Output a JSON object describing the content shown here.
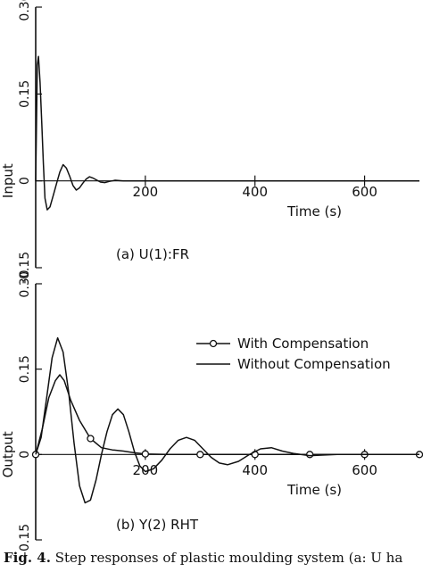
{
  "chart_data": [
    {
      "type": "line",
      "panel_label": "(a)  U(1):FR",
      "ylabel": "Input",
      "xlabel": "Time (s)",
      "xlim": [
        0,
        700
      ],
      "ylim": [
        -0.15,
        0.3
      ],
      "yticks": [
        "0.30",
        "0.15",
        "0",
        "-0.15"
      ],
      "xticks": [
        "200",
        "400",
        "600"
      ],
      "grid": false,
      "series": [
        {
          "x": [
            0,
            3,
            5,
            8,
            11,
            14,
            17,
            21,
            26,
            32,
            38,
            44,
            50,
            56,
            62,
            68,
            74,
            80,
            86,
            92,
            98,
            104,
            110,
            118,
            126,
            134,
            145,
            160,
            200,
            300,
            400,
            500,
            600,
            700
          ],
          "y": [
            0,
            0.2,
            0.215,
            0.17,
            0.1,
            0.03,
            -0.03,
            -0.05,
            -0.045,
            -0.025,
            -0.005,
            0.015,
            0.028,
            0.022,
            0.008,
            -0.008,
            -0.016,
            -0.012,
            -0.004,
            0.003,
            0.007,
            0.005,
            0.002,
            -0.002,
            -0.003,
            -0.001,
            0.001,
            0,
            0,
            0,
            0,
            0,
            0,
            0
          ]
        }
      ]
    },
    {
      "type": "line",
      "panel_label": "(b)  Y(2) RHT",
      "ylabel": "Output",
      "xlabel": "Time (s)",
      "xlim": [
        0,
        700
      ],
      "ylim": [
        -0.15,
        0.3
      ],
      "yticks": [
        "0.30",
        "0.15",
        "0",
        "-0.15"
      ],
      "xticks": [
        "200",
        "400",
        "600"
      ],
      "grid": false,
      "legend": "upper-right",
      "series": [
        {
          "name": "With Compensation",
          "marker": "circle",
          "x": [
            0,
            12,
            24,
            36,
            44,
            52,
            64,
            80,
            100,
            120,
            140,
            160,
            180,
            200,
            240,
            280,
            320,
            360,
            400,
            500,
            600,
            700
          ],
          "y": [
            0,
            0.045,
            0.1,
            0.13,
            0.14,
            0.13,
            0.095,
            0.06,
            0.028,
            0.012,
            0.008,
            0.006,
            0.003,
            0.001,
            0,
            0,
            0,
            0,
            0,
            0,
            0,
            0
          ],
          "marker_x": [
            0,
            100,
            200,
            300,
            400,
            500,
            600,
            700
          ]
        },
        {
          "name": "Without Compensation",
          "x": [
            0,
            10,
            20,
            30,
            40,
            50,
            60,
            70,
            80,
            90,
            100,
            110,
            120,
            130,
            140,
            150,
            160,
            170,
            180,
            190,
            200,
            215,
            230,
            245,
            260,
            275,
            290,
            305,
            320,
            335,
            350,
            370,
            390,
            410,
            430,
            450,
            470,
            500,
            550,
            600,
            700
          ],
          "y": [
            0,
            0.03,
            0.1,
            0.17,
            0.205,
            0.18,
            0.11,
            0.02,
            -0.055,
            -0.085,
            -0.08,
            -0.045,
            0.0,
            0.04,
            0.07,
            0.08,
            0.07,
            0.04,
            0.005,
            -0.02,
            -0.03,
            -0.025,
            -0.01,
            0.01,
            0.025,
            0.03,
            0.025,
            0.01,
            -0.005,
            -0.015,
            -0.018,
            -0.012,
            0.0,
            0.01,
            0.012,
            0.006,
            0.002,
            -0.002,
            0,
            0,
            0
          ]
        }
      ]
    }
  ],
  "caption": {
    "prefix": "Fig. 4.",
    "text": " Step responses of plastic moulding system (a: U ha"
  }
}
